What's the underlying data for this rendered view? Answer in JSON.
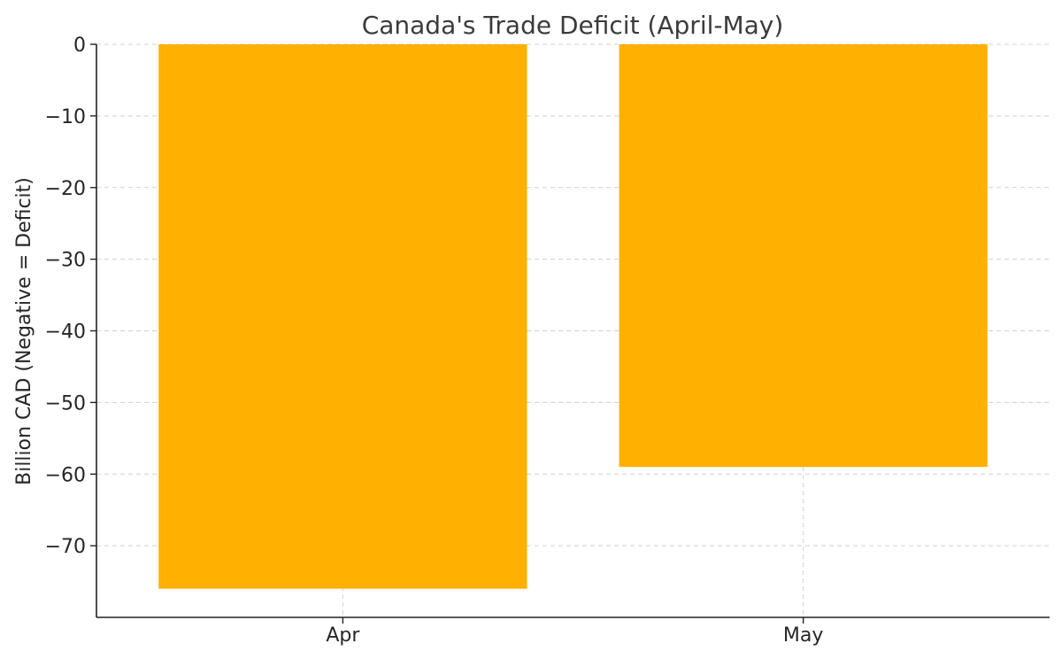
{
  "chart_data": {
    "type": "bar",
    "title": "Canada's Trade Deficit (April-May)",
    "xlabel": "",
    "ylabel": "Billion CAD (Negative = Deficit)",
    "categories": [
      "Apr",
      "May"
    ],
    "values": [
      -76,
      -59
    ],
    "ylim": [
      -80,
      0
    ],
    "yticks": [
      0,
      -10,
      -20,
      -30,
      -40,
      -50,
      -60,
      -70
    ],
    "ytick_labels": [
      "0",
      "−10",
      "−20",
      "−30",
      "−40",
      "−50",
      "−60",
      "−70"
    ],
    "grid": true,
    "bar_color": "#FFB000",
    "legend": null
  }
}
